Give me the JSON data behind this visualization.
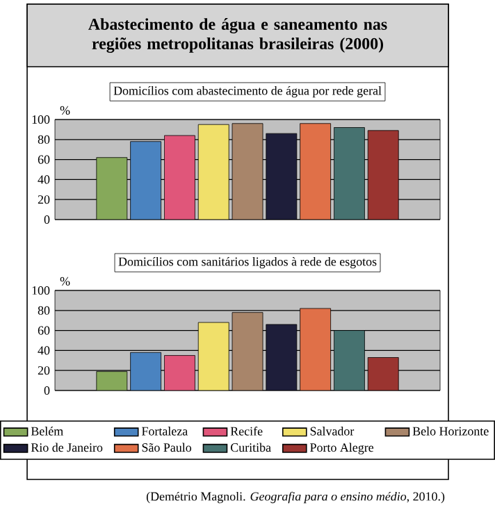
{
  "chart_data": [
    {
      "type": "bar",
      "title": "Abastecimento de água e saneamento nas regiões metropolitanas brasileiras (2000)",
      "subtitle": "Domicílios com abastecimento de água por rede geral",
      "ylabel": "%",
      "categories": [
        null
      ],
      "ylim": [
        0,
        100
      ],
      "yticks": [
        0,
        20,
        40,
        60,
        80,
        100
      ],
      "grid": "y",
      "series": [
        {
          "color": "#86a95a",
          "values": [
            62
          ]
        },
        {
          "color": "#4a83c0",
          "values": [
            78
          ]
        },
        {
          "color": "#e0567a",
          "values": [
            84
          ]
        },
        {
          "color": "#f0e06a",
          "values": [
            95
          ]
        },
        {
          "color": "#a8856a",
          "values": [
            96
          ]
        },
        {
          "color": "#1e1e3a",
          "values": [
            86
          ]
        },
        {
          "color": "#e07048",
          "values": [
            96
          ]
        },
        {
          "color": "#467270",
          "values": [
            92
          ]
        },
        {
          "color": "#9a3430",
          "values": [
            89
          ]
        }
      ]
    },
    {
      "type": "bar",
      "title": "Domicílios com sanitários ligados à rede de esgotos",
      "ylabel": "%",
      "categories": [
        null
      ],
      "ylim": [
        0,
        100
      ],
      "yticks": [
        0,
        20,
        40,
        60,
        80,
        100
      ],
      "grid": "y",
      "legend": "bottom",
      "annotations": [
        "(Demétrio Magnoli. *Geografia para o ensino médio*, 2010.)"
      ],
      "series": [
        {
          "name": "Belém",
          "color": "#86a95a",
          "values": [
            19
          ]
        },
        {
          "name": "Fortaleza",
          "color": "#4a83c0",
          "values": [
            38
          ]
        },
        {
          "name": "Recife",
          "color": "#e0567a",
          "values": [
            35
          ]
        },
        {
          "name": "Salvador",
          "color": "#f0e06a",
          "values": [
            68
          ]
        },
        {
          "name": "Belo Horizonte",
          "color": "#a8856a",
          "values": [
            78
          ]
        },
        {
          "name": "Rio de Janeiro",
          "color": "#1e1e3a",
          "values": [
            66
          ]
        },
        {
          "name": "São Paulo",
          "color": "#e07048",
          "values": [
            82
          ]
        },
        {
          "name": "Curitiba",
          "color": "#467270",
          "values": [
            60
          ]
        },
        {
          "name": "Porto Alegre",
          "color": "#9a3430",
          "values": [
            33
          ]
        }
      ]
    }
  ]
}
